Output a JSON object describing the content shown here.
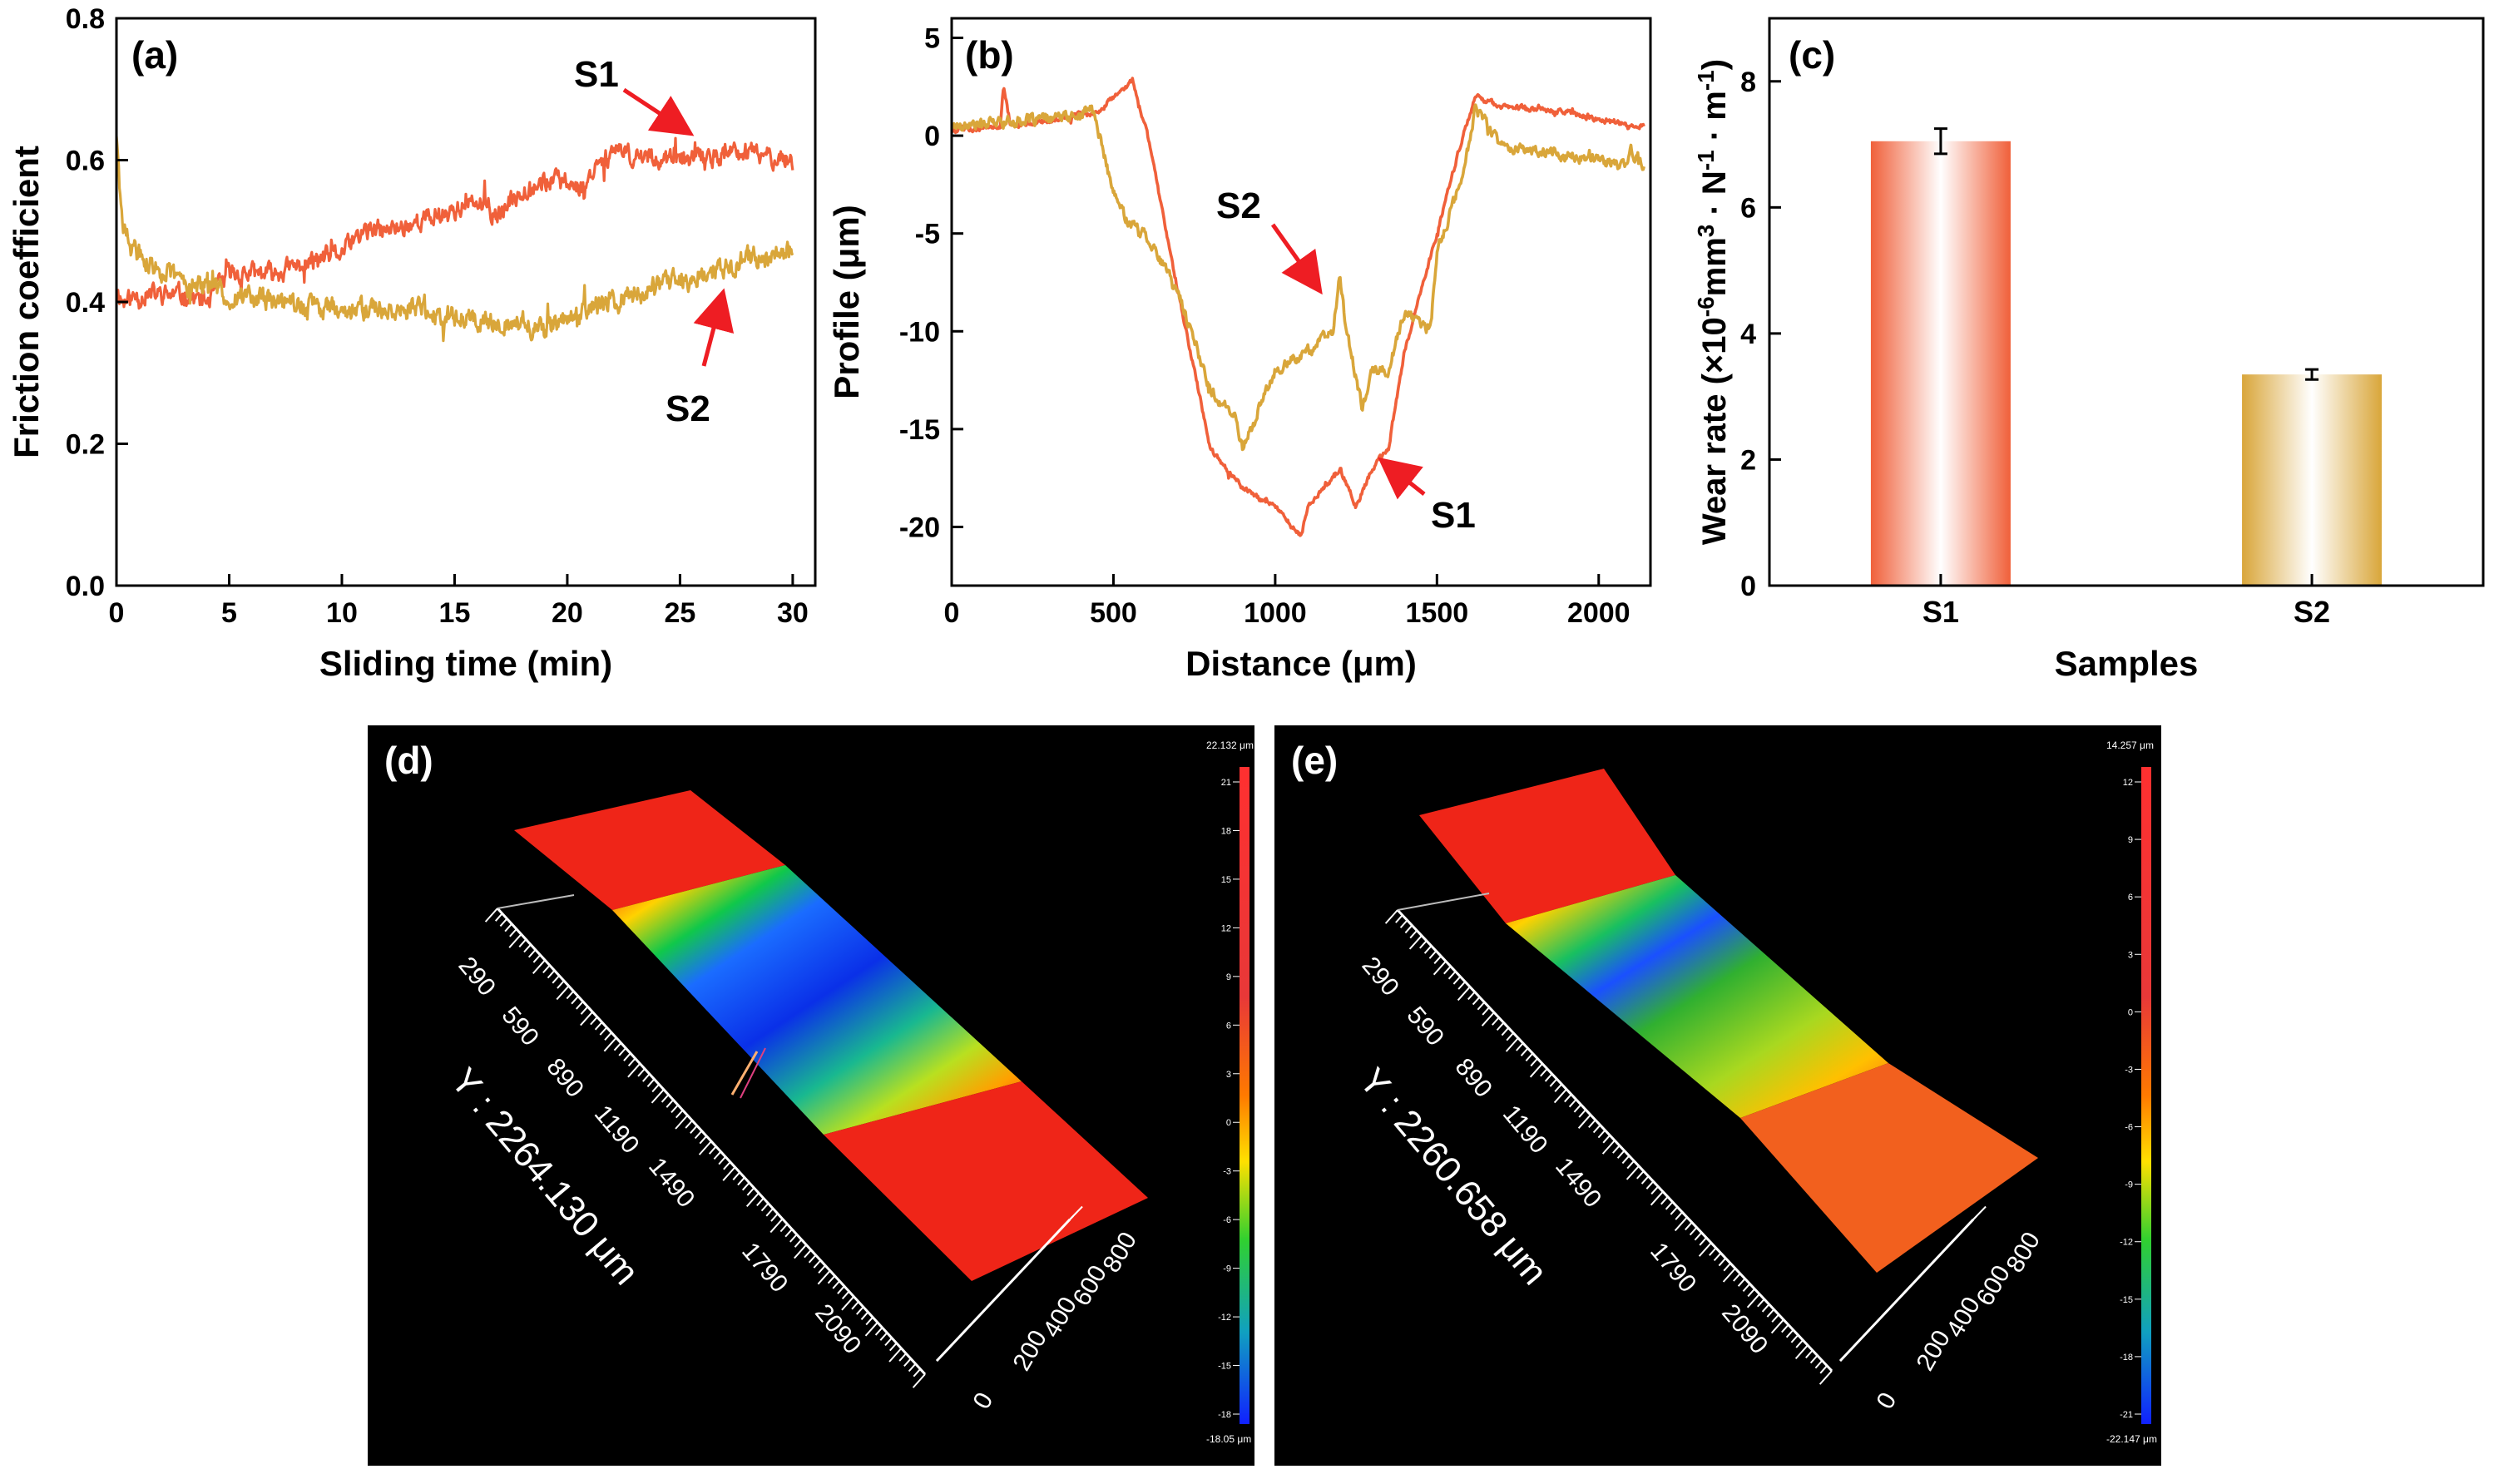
{
  "colors": {
    "s1": "#f0603a",
    "s2": "#d9a63a",
    "arrow": "#ee1d23",
    "axis": "#000000",
    "panel_bg": "#000000",
    "scale_text": "#ffffff"
  },
  "chart_data": [
    {
      "panel": "(a)",
      "type": "line",
      "xlabel": "Sliding time (min)",
      "ylabel": "Friction coefficient",
      "xlim": [
        0,
        31
      ],
      "ylim": [
        0,
        0.8
      ],
      "xticks": [
        0,
        5,
        10,
        15,
        20,
        25,
        30
      ],
      "yticks": [
        0.0,
        0.2,
        0.4,
        0.6,
        0.8
      ],
      "ytick_labels": [
        "0.0",
        "0.2",
        "0.4",
        "0.6",
        "0.8"
      ],
      "series": [
        {
          "name": "S1",
          "color_key": "s1",
          "noise": 0.025,
          "seed": 11,
          "x": [
            0,
            0.3,
            1,
            3,
            4,
            5,
            7,
            9,
            10,
            11,
            12,
            13,
            14,
            15,
            16,
            17,
            18,
            19,
            20,
            20.8,
            21.3,
            22,
            25,
            28,
            30
          ],
          "y": [
            0.42,
            0.4,
            0.41,
            0.41,
            0.4,
            0.44,
            0.44,
            0.46,
            0.47,
            0.5,
            0.5,
            0.51,
            0.52,
            0.53,
            0.54,
            0.52,
            0.56,
            0.57,
            0.57,
            0.56,
            0.6,
            0.61,
            0.6,
            0.61,
            0.6
          ]
        },
        {
          "name": "S2",
          "color_key": "s2",
          "noise": 0.028,
          "seed": 29,
          "x": [
            0,
            0.2,
            0.6,
            1.5,
            3,
            5,
            7,
            10,
            13,
            15,
            18,
            19,
            20,
            22,
            24,
            26,
            28,
            30
          ],
          "y": [
            0.64,
            0.52,
            0.48,
            0.45,
            0.43,
            0.41,
            0.4,
            0.39,
            0.39,
            0.38,
            0.37,
            0.36,
            0.38,
            0.4,
            0.42,
            0.44,
            0.46,
            0.47
          ]
        }
      ],
      "annotations": [
        {
          "label": "S1",
          "series": "S1",
          "x": 25,
          "y": 0.6
        },
        {
          "label": "S2",
          "series": "S2",
          "x": 27,
          "y": 0.44
        }
      ]
    },
    {
      "panel": "(b)",
      "type": "line",
      "xlabel": "Distance (μm)",
      "ylabel": "Profile (μm)",
      "xlim": [
        0,
        2160
      ],
      "ylim": [
        -23,
        6
      ],
      "xticks": [
        0,
        500,
        1000,
        1500,
        2000
      ],
      "yticks": [
        5,
        0,
        -5,
        -10,
        -15,
        -20
      ],
      "series": [
        {
          "name": "S1",
          "color_key": "s1",
          "noise": 0.25,
          "seed": 5,
          "x": [
            0,
            150,
            160,
            180,
            200,
            450,
            560,
            580,
            600,
            700,
            800,
            900,
            1000,
            1080,
            1100,
            1200,
            1250,
            1300,
            1350,
            1400,
            1500,
            1580,
            1620,
            1700,
            1900,
            2100,
            2140
          ],
          "y": [
            0.3,
            0.5,
            2.5,
            0.7,
            0.5,
            1.2,
            2.8,
            1.3,
            0.5,
            -8,
            -16,
            -18,
            -19,
            -20.5,
            -19,
            -17,
            -19,
            -17,
            -16,
            -11,
            -5,
            0,
            2,
            1.5,
            1.2,
            0.5,
            0.5
          ]
        },
        {
          "name": "S2",
          "color_key": "s2",
          "noise": 0.5,
          "seed": 17,
          "x": [
            0,
            400,
            430,
            450,
            500,
            550,
            600,
            700,
            800,
            880,
            900,
            1000,
            1100,
            1180,
            1200,
            1220,
            1270,
            1300,
            1350,
            1400,
            1480,
            1500,
            1580,
            1620,
            1700,
            1900,
            2080,
            2100,
            2140
          ],
          "y": [
            0.5,
            1.0,
            1.5,
            0.5,
            -3,
            -4.5,
            -5,
            -8,
            -13,
            -14.5,
            -16,
            -12,
            -11,
            -10,
            -7,
            -10,
            -14,
            -12,
            -12,
            -9,
            -10,
            -6,
            -2,
            1.5,
            -0.5,
            -1,
            -1.5,
            -0.8,
            -1.7
          ]
        }
      ],
      "annotations": [
        {
          "label": "S2",
          "series": "S2",
          "x": 1200,
          "y": -7
        },
        {
          "label": "S1",
          "series": "S1",
          "x": 1340,
          "y": -16
        }
      ]
    },
    {
      "panel": "(c)",
      "type": "bar",
      "categories": [
        "S1",
        "S2"
      ],
      "values": [
        7.05,
        3.35
      ],
      "errors": [
        0.2,
        0.08
      ],
      "color_keys": [
        "s1",
        "s2"
      ],
      "xlabel": "Samples",
      "ylabel_parts": [
        "Wear rate (×10",
        "-6",
        "mm",
        "3",
        " · N",
        "-1",
        " · m",
        "-1",
        ")"
      ],
      "ylim": [
        0,
        9
      ],
      "yticks": [
        0,
        2,
        4,
        6,
        8
      ]
    }
  ],
  "panels_3d": [
    {
      "label": "(d)",
      "y_length": "Y : 2264.130 μm",
      "y_ticks": [
        "290",
        "590",
        "890",
        "1190",
        "1490",
        "1790",
        "2090"
      ],
      "x_ticks": [
        "0",
        "200",
        "400",
        "600",
        "800"
      ],
      "scale_max": "22.132 μm",
      "scale_min": "-18.05 μm",
      "scale_ticks": [
        "21",
        "18",
        "15",
        "12",
        "9",
        "6",
        "3",
        "0",
        "-3",
        "-6",
        "-9",
        "-12",
        "-15",
        "-18"
      ]
    },
    {
      "label": "(e)",
      "y_length": "Y : 2260.658 μm",
      "y_ticks": [
        "290",
        "590",
        "890",
        "1190",
        "1490",
        "1790",
        "2090"
      ],
      "x_ticks": [
        "0",
        "200",
        "400",
        "600",
        "800"
      ],
      "scale_max": "14.257 μm",
      "scale_min": "-22.147 μm",
      "scale_ticks": [
        "12",
        "9",
        "6",
        "3",
        "0",
        "-3",
        "-6",
        "-9",
        "-12",
        "-15",
        "-18",
        "-21"
      ]
    }
  ]
}
